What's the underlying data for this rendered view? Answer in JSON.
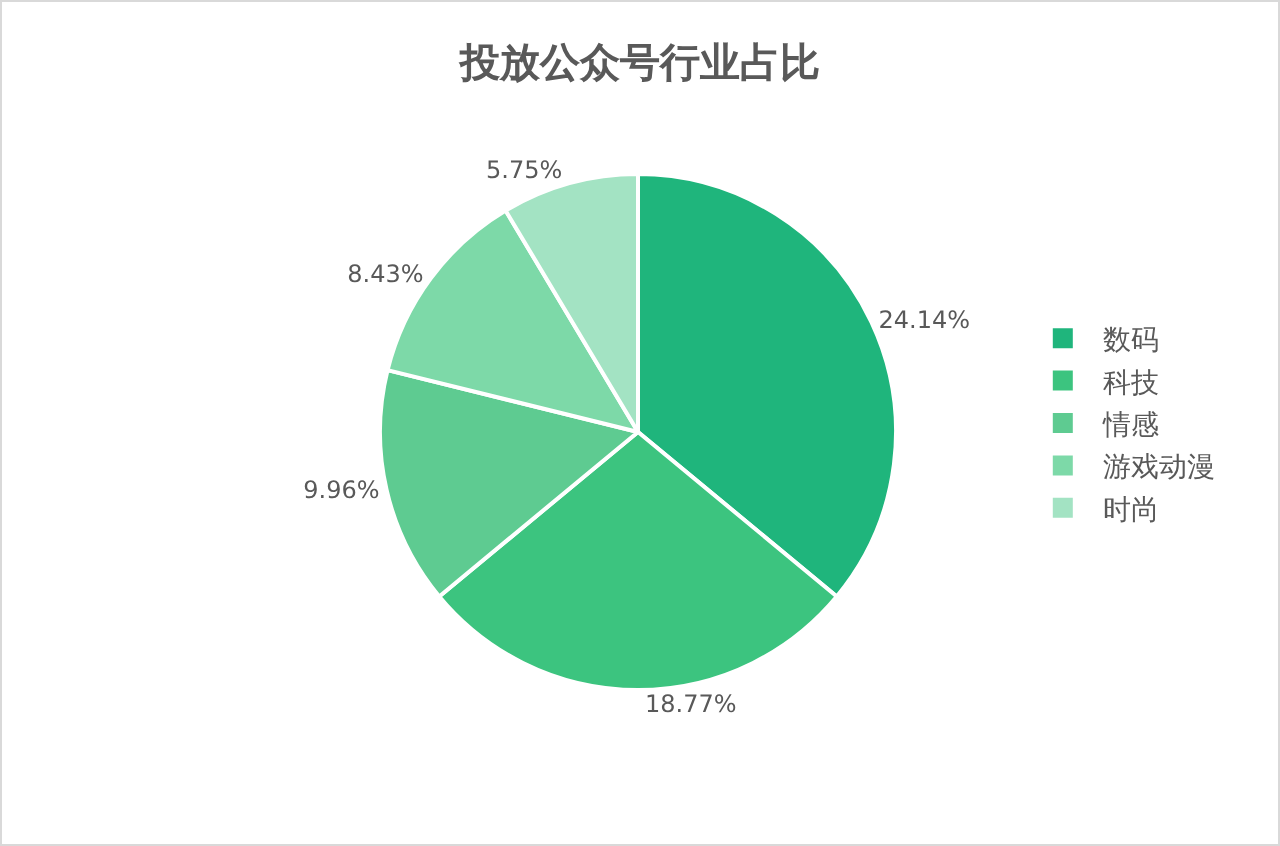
{
  "chart_data": {
    "type": "pie",
    "title": "投放公众号行业占比",
    "categories": [
      "数码",
      "科技",
      "情感",
      "游戏动漫",
      "时尚"
    ],
    "values": [
      24.14,
      18.77,
      9.96,
      8.43,
      5.75
    ],
    "value_labels": [
      "24.14%",
      "18.77%",
      "9.96%",
      "8.43%",
      "5.75%"
    ],
    "colors": [
      "#1fb57c",
      "#3cc47f",
      "#5ecb91",
      "#7dd9a8",
      "#a3e3c3"
    ],
    "legend": "right"
  }
}
